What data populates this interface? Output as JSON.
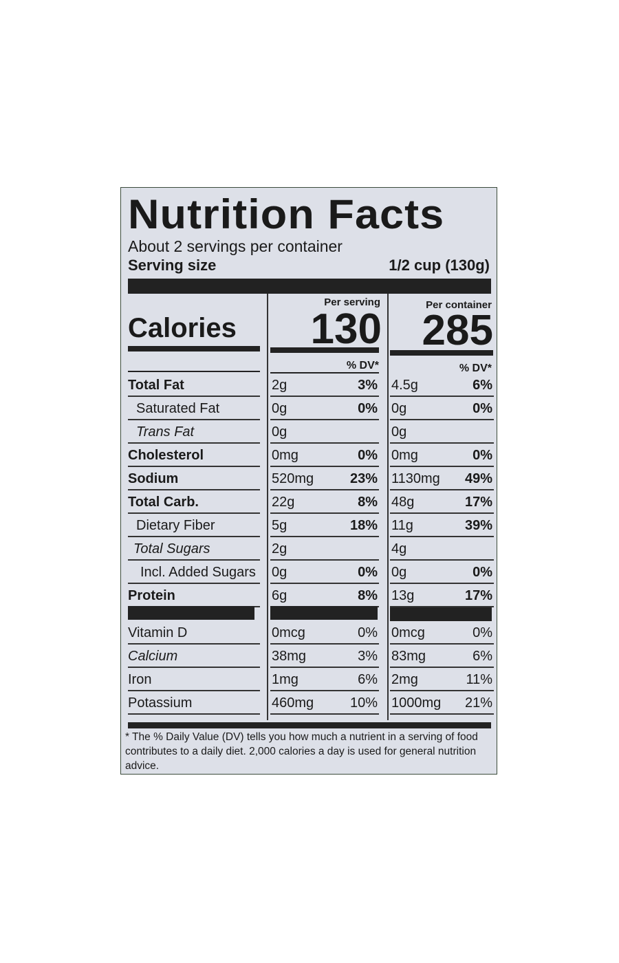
{
  "title": "Nutrition Facts",
  "servings_per_container": "About 2 servings per container",
  "serving_size_label": "Serving size",
  "serving_size_value": "1/2 cup (130g)",
  "calories_label": "Calories",
  "per_serving_label": "Per serving",
  "per_container_label": "Per container",
  "calories_per_serving": "130",
  "calories_per_container": "285",
  "dv_header": "% DV*",
  "nutrients": [
    {
      "name": "Total Fat",
      "serving_amount": "2g",
      "serving_dv": "3%",
      "container_amount": "4.5g",
      "container_dv": "6%"
    },
    {
      "name": "Saturated Fat",
      "serving_amount": "0g",
      "serving_dv": "0%",
      "container_amount": "0g",
      "container_dv": "0%"
    },
    {
      "name": "Trans Fat",
      "serving_amount": "0g",
      "serving_dv": "",
      "container_amount": "0g",
      "container_dv": ""
    },
    {
      "name": "Cholesterol",
      "serving_amount": "0mg",
      "serving_dv": "0%",
      "container_amount": "0mg",
      "container_dv": "0%"
    },
    {
      "name": "Sodium",
      "serving_amount": "520mg",
      "serving_dv": "23%",
      "container_amount": "1130mg",
      "container_dv": "49%"
    },
    {
      "name": "Total Carb.",
      "serving_amount": "22g",
      "serving_dv": "8%",
      "container_amount": "48g",
      "container_dv": "17%"
    },
    {
      "name": "Dietary Fiber",
      "serving_amount": "5g",
      "serving_dv": "18%",
      "container_amount": "11g",
      "container_dv": "39%"
    },
    {
      "name": "Total Sugars",
      "serving_amount": "2g",
      "serving_dv": "",
      "container_amount": "4g",
      "container_dv": ""
    },
    {
      "name": "Incl. Added Sugars",
      "serving_amount": "0g",
      "serving_dv": "0%",
      "container_amount": "0g",
      "container_dv": "0%"
    },
    {
      "name": "Protein",
      "serving_amount": "6g",
      "serving_dv": "8%",
      "container_amount": "13g",
      "container_dv": "17%"
    }
  ],
  "vitamins": [
    {
      "name": "Vitamin D",
      "serving_amount": "0mcg",
      "serving_dv": "0%",
      "container_amount": "0mcg",
      "container_dv": "0%"
    },
    {
      "name": "Calcium",
      "serving_amount": "38mg",
      "serving_dv": "3%",
      "container_amount": "83mg",
      "container_dv": "6%"
    },
    {
      "name": "Iron",
      "serving_amount": "1mg",
      "serving_dv": "6%",
      "container_amount": "2mg",
      "container_dv": "11%"
    },
    {
      "name": "Potassium",
      "serving_amount": "460mg",
      "serving_dv": "10%",
      "container_amount": "1000mg",
      "container_dv": "21%"
    }
  ],
  "footnote": "* The % Daily Value (DV) tells you how much a nutrient in a serving of food contributes to a daily diet. 2,000 calories a day is used for general nutrition advice."
}
